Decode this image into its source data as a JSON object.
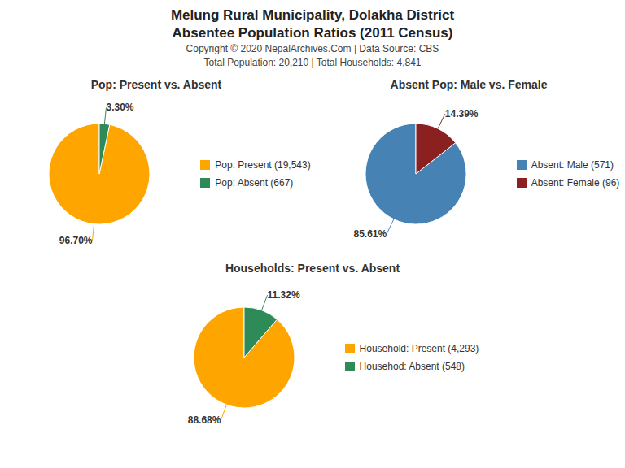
{
  "title": "Melung Rural Municipality, Dolakha District",
  "subtitle": "Absentee Population Ratios (2011 Census)",
  "annotations": [
    "Copyright © 2020 NepalArchives.Com | Data Source: CBS",
    "Total Population: 20,210 | Total Households: 4,841"
  ],
  "chart_data": [
    {
      "type": "pie",
      "title": "Pop: Present vs. Absent",
      "categories": [
        "Pop: Present (19,543)",
        "Pop: Absent (667)"
      ],
      "values": [
        96.7,
        3.3
      ],
      "value_labels": [
        "96.70%",
        "3.30%"
      ],
      "colors": [
        "#FFA500",
        "#2E8B57"
      ],
      "data_labels": true,
      "legend": "right"
    },
    {
      "type": "pie",
      "title": "Absent Pop: Male vs. Female",
      "categories": [
        "Absent: Male (571)",
        "Absent: Female (96)"
      ],
      "values": [
        85.61,
        14.39
      ],
      "value_labels": [
        "85.61%",
        "14.39%"
      ],
      "colors": [
        "#4682B4",
        "#8B2020"
      ],
      "data_labels": true,
      "legend": "right"
    },
    {
      "type": "pie",
      "title": "Households: Present vs. Absent",
      "categories": [
        "Household: Present (4,293)",
        "Househod: Absent (548)"
      ],
      "values": [
        88.68,
        11.32
      ],
      "value_labels": [
        "88.68%",
        "11.32%"
      ],
      "colors": [
        "#FFA500",
        "#2E8B57"
      ],
      "data_labels": true,
      "legend": "right"
    }
  ]
}
